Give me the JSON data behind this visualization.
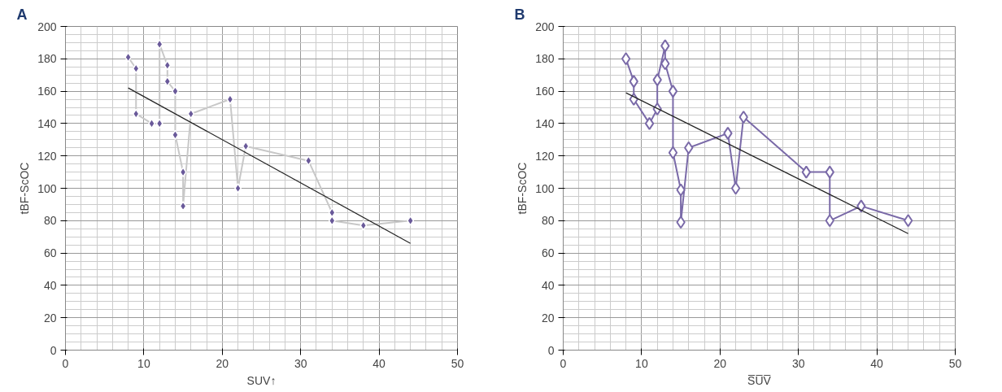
{
  "chart_data": [
    {
      "type": "line",
      "title": "A",
      "xlabel": "SUV↑",
      "ylabel": "tBF-ScOC",
      "xlim": [
        0,
        50
      ],
      "ylim": [
        0,
        200
      ],
      "xticks": [
        0,
        10,
        20,
        30,
        40,
        50
      ],
      "yticks": [
        0,
        20,
        40,
        60,
        80,
        100,
        120,
        140,
        160,
        180,
        200
      ],
      "grid": true,
      "marker": "diamond",
      "series": [
        {
          "color": "#6a5a9a",
          "x": [
            8,
            9,
            9,
            11,
            12,
            12,
            13,
            13,
            14,
            14,
            15,
            15,
            16,
            21,
            22,
            23,
            31,
            34,
            34,
            38,
            44
          ],
          "values": [
            181,
            174,
            146,
            140,
            140,
            189,
            176,
            166,
            160,
            133,
            110,
            89,
            146,
            155,
            100,
            126,
            117,
            85,
            80,
            77,
            80
          ]
        },
        {
          "type": "line",
          "color": "#222222",
          "marker": "none",
          "x": [
            8,
            44
          ],
          "values": [
            162,
            66
          ]
        }
      ]
    },
    {
      "type": "line",
      "title": "B",
      "xlabel": "S̅U̅V̅",
      "ylabel": "tBF-ScOC",
      "xlim": [
        0,
        50
      ],
      "ylim": [
        0,
        200
      ],
      "xticks": [
        0,
        10,
        20,
        30,
        40,
        50
      ],
      "yticks": [
        0,
        20,
        40,
        60,
        80,
        100,
        120,
        140,
        160,
        180,
        200
      ],
      "grid": true,
      "marker": "diamond",
      "series": [
        {
          "color": "#7a6aa8",
          "x": [
            8,
            9,
            9,
            11,
            12,
            12,
            13,
            13,
            14,
            14,
            15,
            15,
            16,
            21,
            22,
            23,
            31,
            34,
            34,
            38,
            44
          ],
          "values": [
            180,
            166,
            155,
            140,
            149,
            167,
            188,
            177,
            160,
            122,
            99,
            79,
            125,
            134,
            100,
            144,
            110,
            110,
            80,
            89,
            80
          ]
        },
        {
          "type": "line",
          "color": "#222222",
          "marker": "none",
          "x": [
            8,
            44
          ],
          "values": [
            159,
            72
          ]
        }
      ]
    }
  ]
}
